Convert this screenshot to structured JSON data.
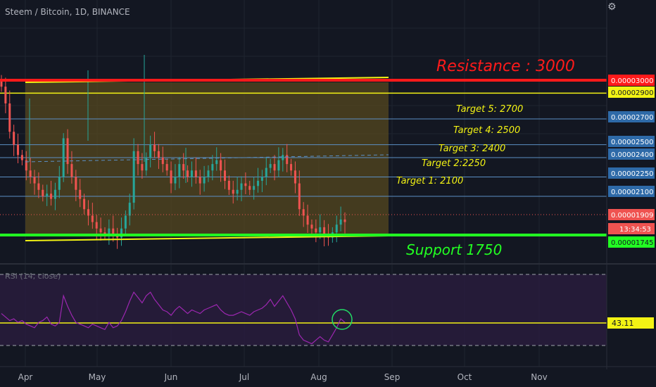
{
  "header": {
    "symbol_title": "Steem / Bitcoin, 1D, BINANCE",
    "settings_icon": "gear-icon"
  },
  "colors": {
    "background": "#131722",
    "resistance": "#ff1a1a",
    "yellow": "#f3f314",
    "support": "#22ff22",
    "target_line": "#5b8fc4",
    "range_box": "#55481f",
    "bull_candle": "#26a69a",
    "bear_candle": "#ef5350",
    "rsi_line": "#9c27b0",
    "rsi_band": "#2b1d3f",
    "annotation_text": "#f3f314"
  },
  "annotations": {
    "resistance": "Resistance : 3000",
    "support": "Support 1750",
    "targets": [
      "Target 5: 2700",
      "Target 4: 2500",
      "Target 3: 2400",
      "Target 2:2250",
      "Target 1: 2100"
    ]
  },
  "rsi": {
    "label": "RSI (14, close)",
    "current": "43.11"
  },
  "chart_data": {
    "type": "candlestick",
    "title": "Steem / Bitcoin, 1D, BINANCE",
    "x_ticks": [
      "Apr",
      "May",
      "Jun",
      "Jul",
      "Aug",
      "Sep",
      "Oct",
      "Nov"
    ],
    "y_unit": "BTC",
    "price_labels": [
      {
        "value": "0.00003000",
        "kind": "resistance"
      },
      {
        "value": "0.00002900",
        "kind": "yellow"
      },
      {
        "value": "0.00002700",
        "kind": "target"
      },
      {
        "value": "0.00002500",
        "kind": "target"
      },
      {
        "value": "0.00002400",
        "kind": "target"
      },
      {
        "value": "0.00002250",
        "kind": "target"
      },
      {
        "value": "0.00002100",
        "kind": "target"
      },
      {
        "value": "0.00001909",
        "kind": "last"
      },
      {
        "value": "13:34:53",
        "kind": "countdown"
      },
      {
        "value": "0.00001745",
        "kind": "support"
      }
    ],
    "close_series": [
      2.95,
      2.82,
      2.6,
      2.5,
      2.42,
      2.38,
      2.3,
      2.25,
      2.2,
      2.15,
      2.1,
      2.12,
      2.08,
      2.15,
      2.25,
      2.55,
      2.35,
      2.25,
      2.15,
      2.08,
      2.0,
      1.95,
      1.9,
      1.85,
      1.82,
      1.8,
      1.85,
      1.8,
      1.78,
      1.85,
      1.95,
      2.05,
      2.45,
      2.35,
      2.3,
      2.4,
      2.5,
      2.45,
      2.4,
      2.35,
      2.3,
      2.2,
      2.25,
      2.35,
      2.3,
      2.25,
      2.3,
      2.25,
      2.2,
      2.25,
      2.3,
      2.35,
      2.38,
      2.3,
      2.22,
      2.15,
      2.12,
      2.15,
      2.2,
      2.18,
      2.15,
      2.18,
      2.22,
      2.25,
      2.32,
      2.35,
      2.3,
      2.38,
      2.42,
      2.35,
      2.3,
      2.2,
      2.0,
      1.95,
      1.88,
      1.85,
      1.82,
      1.86,
      1.8,
      1.78,
      1.82,
      1.88,
      1.92,
      1.9
    ],
    "rsi_series": [
      48,
      46,
      44,
      45,
      43,
      44,
      42,
      41,
      40,
      43,
      44,
      46,
      42,
      41,
      43,
      58,
      52,
      47,
      43,
      42,
      41,
      40,
      42,
      41,
      40,
      39,
      43,
      40,
      41,
      44,
      49,
      55,
      60,
      57,
      54,
      58,
      60,
      56,
      53,
      50,
      49,
      47,
      50,
      52,
      50,
      48,
      50,
      49,
      48,
      50,
      51,
      52,
      53,
      50,
      48,
      47,
      47,
      48,
      49,
      48,
      47,
      49,
      50,
      51,
      53,
      56,
      52,
      55,
      58,
      54,
      50,
      45,
      36,
      33,
      32,
      31,
      33,
      35,
      33,
      32,
      36,
      40,
      45,
      43
    ],
    "rsi_levels": [
      70,
      30
    ],
    "rsi_current": 43.11
  }
}
